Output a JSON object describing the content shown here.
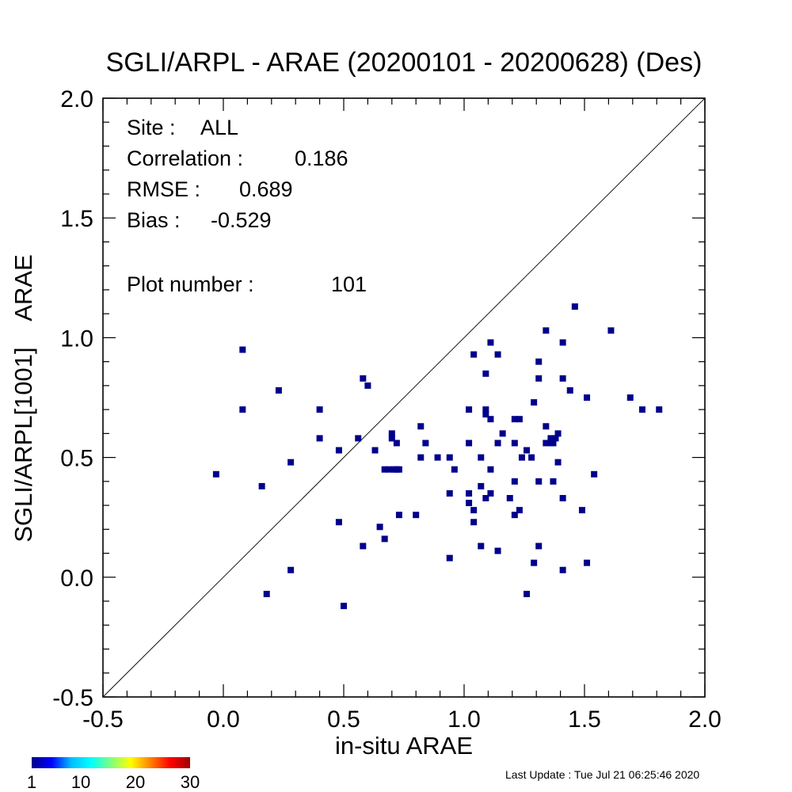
{
  "chart_data": {
    "type": "scatter",
    "title": "SGLI/ARPL - ARAE (20200101 - 20200628) (Des)",
    "xlabel": "in-situ ARAE",
    "ylabel": "SGLI/ARPL[1001]    ARAE",
    "xlim": [
      -0.5,
      2.0
    ],
    "ylim": [
      -0.5,
      2.0
    ],
    "x_ticks": [
      "-0.5",
      "0.0",
      "0.5",
      "1.0",
      "1.5",
      "2.0"
    ],
    "y_ticks": [
      "-0.5",
      "0.0",
      "0.5",
      "1.0",
      "1.5",
      "2.0"
    ],
    "reference_line": "1:1",
    "grid": false,
    "marker_color": "#00008b",
    "stats": [
      {
        "label": "Site :",
        "value": "ALL"
      },
      {
        "label": "Correlation :",
        "value": "0.186"
      },
      {
        "label": "RMSE :",
        "value": "0.689"
      },
      {
        "label": "Bias :",
        "value": "-0.529"
      },
      {
        "label": "Plot number :",
        "value": "101"
      }
    ],
    "colorbar": {
      "ticks": [
        "1",
        "10",
        "20",
        "30"
      ],
      "range": [
        1,
        30
      ],
      "colors": [
        "#00008b",
        "#0000ff",
        "#00bfff",
        "#00ffff",
        "#7fff7f",
        "#ffff00",
        "#ff8000",
        "#ff0000",
        "#a00000"
      ]
    },
    "points": [
      [
        -0.03,
        0.43
      ],
      [
        0.08,
        0.95
      ],
      [
        0.08,
        0.7
      ],
      [
        0.16,
        0.38
      ],
      [
        0.18,
        -0.07
      ],
      [
        0.23,
        0.78
      ],
      [
        0.28,
        0.48
      ],
      [
        0.28,
        0.03
      ],
      [
        0.4,
        0.7
      ],
      [
        0.4,
        0.58
      ],
      [
        0.48,
        0.53
      ],
      [
        0.48,
        0.23
      ],
      [
        0.5,
        -0.12
      ],
      [
        0.56,
        0.58
      ],
      [
        0.58,
        0.83
      ],
      [
        0.58,
        0.13
      ],
      [
        0.6,
        0.8
      ],
      [
        0.63,
        0.53
      ],
      [
        0.65,
        0.21
      ],
      [
        0.67,
        0.45
      ],
      [
        0.67,
        0.16
      ],
      [
        0.69,
        0.45
      ],
      [
        0.7,
        0.6
      ],
      [
        0.7,
        0.58
      ],
      [
        0.71,
        0.45
      ],
      [
        0.72,
        0.56
      ],
      [
        0.73,
        0.45
      ],
      [
        0.73,
        0.26
      ],
      [
        0.8,
        0.26
      ],
      [
        0.82,
        0.63
      ],
      [
        0.82,
        0.5
      ],
      [
        0.84,
        0.56
      ],
      [
        0.89,
        0.5
      ],
      [
        0.94,
        0.5
      ],
      [
        0.94,
        0.35
      ],
      [
        0.94,
        0.08
      ],
      [
        0.96,
        0.45
      ],
      [
        1.02,
        0.7
      ],
      [
        1.02,
        0.56
      ],
      [
        1.02,
        0.35
      ],
      [
        1.02,
        0.31
      ],
      [
        1.04,
        0.93
      ],
      [
        1.04,
        0.28
      ],
      [
        1.04,
        0.23
      ],
      [
        1.07,
        0.5
      ],
      [
        1.07,
        0.38
      ],
      [
        1.07,
        0.13
      ],
      [
        1.09,
        0.85
      ],
      [
        1.09,
        0.7
      ],
      [
        1.09,
        0.68
      ],
      [
        1.09,
        0.33
      ],
      [
        1.11,
        0.98
      ],
      [
        1.11,
        0.66
      ],
      [
        1.11,
        0.45
      ],
      [
        1.11,
        0.35
      ],
      [
        1.14,
        0.93
      ],
      [
        1.14,
        0.56
      ],
      [
        1.14,
        0.11
      ],
      [
        1.16,
        0.6
      ],
      [
        1.19,
        0.33
      ],
      [
        1.21,
        0.66
      ],
      [
        1.21,
        0.56
      ],
      [
        1.21,
        0.4
      ],
      [
        1.21,
        0.26
      ],
      [
        1.23,
        0.66
      ],
      [
        1.23,
        0.28
      ],
      [
        1.24,
        0.5
      ],
      [
        1.26,
        0.53
      ],
      [
        1.26,
        -0.07
      ],
      [
        1.28,
        0.5
      ],
      [
        1.29,
        0.73
      ],
      [
        1.29,
        0.06
      ],
      [
        1.31,
        0.9
      ],
      [
        1.31,
        0.83
      ],
      [
        1.31,
        0.4
      ],
      [
        1.31,
        0.13
      ],
      [
        1.34,
        1.03
      ],
      [
        1.34,
        0.63
      ],
      [
        1.34,
        0.56
      ],
      [
        1.36,
        0.56
      ],
      [
        1.36,
        0.58
      ],
      [
        1.37,
        0.4
      ],
      [
        1.38,
        0.58
      ],
      [
        1.39,
        0.6
      ],
      [
        1.39,
        0.48
      ],
      [
        1.41,
        0.98
      ],
      [
        1.41,
        0.83
      ],
      [
        1.41,
        0.33
      ],
      [
        1.41,
        0.03
      ],
      [
        1.44,
        0.78
      ],
      [
        1.46,
        1.13
      ],
      [
        1.49,
        0.28
      ],
      [
        1.51,
        0.75
      ],
      [
        1.51,
        0.06
      ],
      [
        1.54,
        0.43
      ],
      [
        1.61,
        1.03
      ],
      [
        1.69,
        0.75
      ],
      [
        1.74,
        0.7
      ],
      [
        1.81,
        0.7
      ],
      [
        1.37,
        0.56
      ],
      [
        0.72,
        0.45
      ]
    ]
  },
  "footer": {
    "last_update": "Last Update : Tue Jul 21 06:25:46 2020"
  }
}
